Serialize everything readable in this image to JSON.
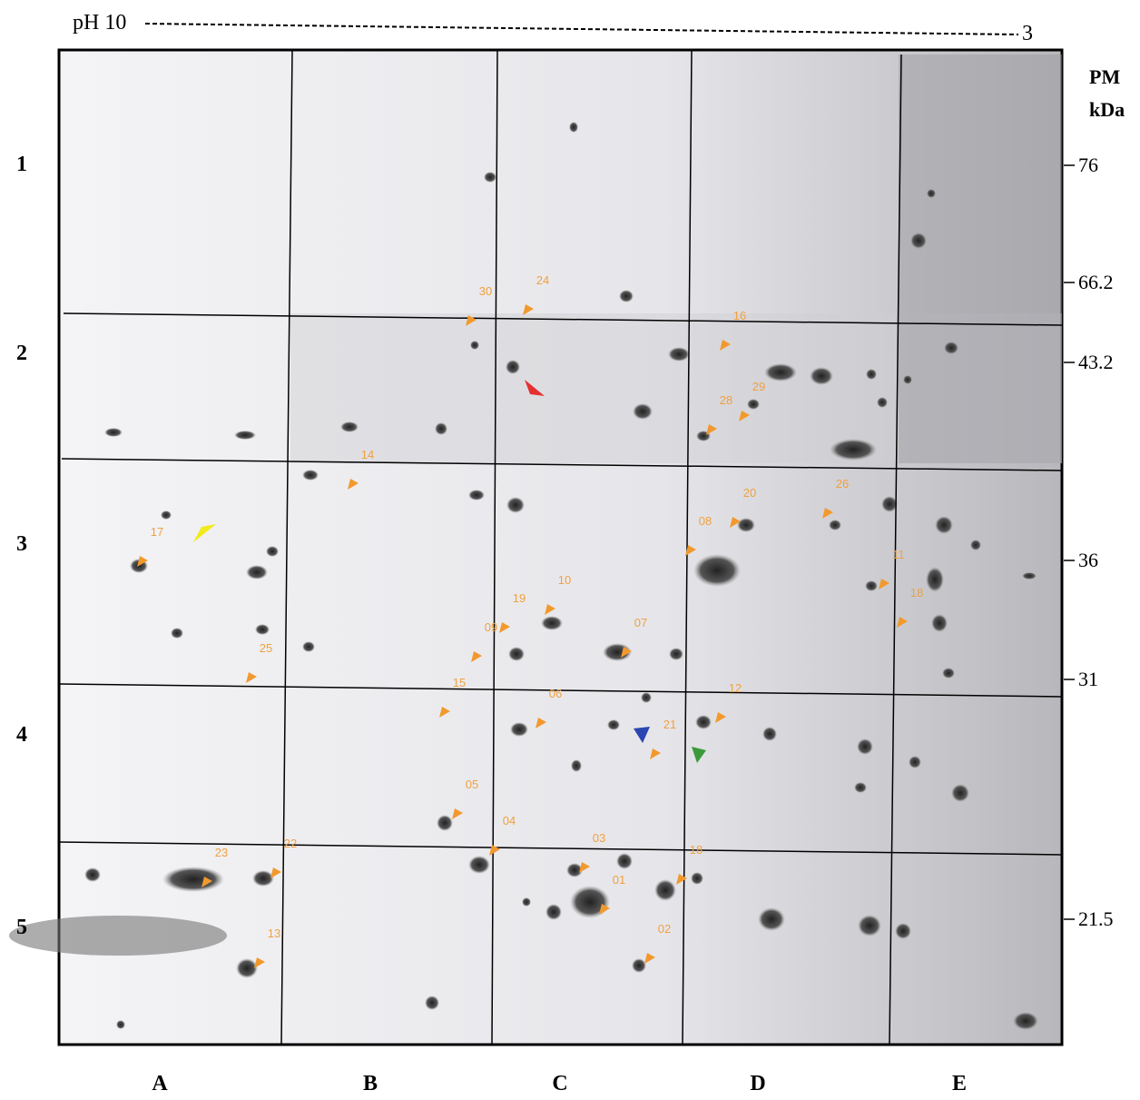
{
  "header": {
    "ph_label": "pH 10",
    "ph_end": "3"
  },
  "mw_axis": {
    "title_line1": "PM",
    "title_line2": "kDa",
    "markers": [
      "76",
      "66.2",
      "43.2",
      "36",
      "31",
      "21.5"
    ]
  },
  "rows": [
    "1",
    "2",
    "3",
    "4",
    "5"
  ],
  "columns": [
    "A",
    "B",
    "C",
    "D",
    "E"
  ],
  "spots": [
    "30",
    "24",
    "16",
    "28",
    "29",
    "14",
    "26",
    "20",
    "08",
    "17",
    "11",
    "10",
    "19",
    "18",
    "09",
    "07",
    "25",
    "15",
    "06",
    "12",
    "21",
    "05",
    "04",
    "03",
    "22",
    "23",
    "18",
    "01",
    "02",
    "13"
  ]
}
